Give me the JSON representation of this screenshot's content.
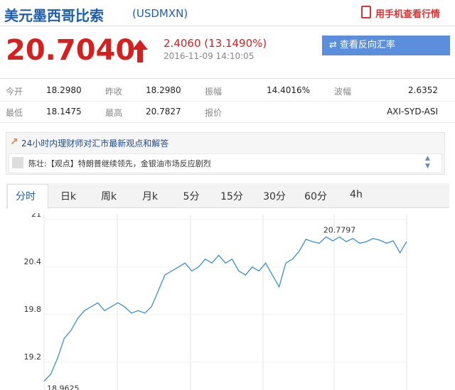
{
  "header": {
    "title": "美元墨西哥比索",
    "code": "(USDMXN)",
    "mobile_link": "用手机查看行情"
  },
  "quote": {
    "price": "20.7040",
    "change": "2.4060 (13.1490%)",
    "time": "2016-11-09 14:10:05",
    "reverse_button": "查看反向汇率"
  },
  "stats": {
    "rows": [
      [
        [
          "今开",
          "18.2980"
        ],
        [
          "昨收",
          "18.2980"
        ],
        [
          "振幅",
          "14.4016%"
        ],
        [
          "波幅",
          "2.6352"
        ]
      ],
      [
        [
          "最低",
          "18.1475"
        ],
        [
          "最高",
          "20.7827"
        ],
        [
          "报价",
          "AXI-SYD-ASI"
        ]
      ]
    ]
  },
  "news": {
    "heading": "24小时内理财师对汇市最新观点和解答",
    "item": "陈壮:【观点】特朗普继续领先，金银油市场反应剧烈"
  },
  "tabs": [
    "分时",
    "日k",
    "周k",
    "月k",
    "5分",
    "15分",
    "30分",
    "60分",
    "4h"
  ],
  "chart_data": {
    "type": "line",
    "ylim": [
      18.85,
      21.08
    ],
    "yticks": [
      19.2,
      19.8,
      20.4,
      21
    ],
    "grid": true,
    "annotations": [
      {
        "label": "20.7797",
        "value": 20.7797
      },
      {
        "label": "18.9625",
        "value": 18.9625
      }
    ],
    "series": [
      {
        "color": "#3a8fd0",
        "values": [
          18.9625,
          19.05,
          19.25,
          19.5,
          19.6,
          19.75,
          19.85,
          19.9,
          19.95,
          19.85,
          19.9,
          19.95,
          19.9,
          19.82,
          19.85,
          19.82,
          19.9,
          20.1,
          20.3,
          20.35,
          20.4,
          20.45,
          20.35,
          20.4,
          20.5,
          20.45,
          20.55,
          20.45,
          20.5,
          20.35,
          20.3,
          20.4,
          20.35,
          20.45,
          20.3,
          20.15,
          20.45,
          20.5,
          20.6,
          20.75,
          20.72,
          20.7,
          20.78,
          20.73,
          20.7797,
          20.72,
          20.76,
          20.7,
          20.72,
          20.76,
          20.74,
          20.7,
          20.73,
          20.58,
          20.72
        ]
      }
    ]
  }
}
